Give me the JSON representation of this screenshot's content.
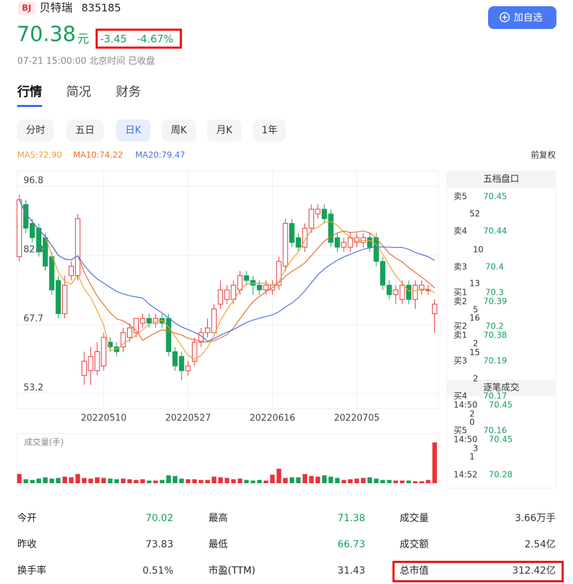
{
  "header": {
    "badge": "BJ",
    "name": "贝特瑞",
    "code": "835185",
    "price": "70.38",
    "unit": "元",
    "change": "-3.45",
    "change_pct": "-4.67%",
    "time": "07-21 15:00:00 北京时间 已收盘",
    "button": "加自选"
  },
  "tabs": [
    "行情",
    "简况",
    "财务"
  ],
  "periods": [
    "分时",
    "五日",
    "日K",
    "周K",
    "月K",
    "1年"
  ],
  "ma_legend": [
    {
      "text": "MA5:72.90",
      "color": "#f0a030"
    },
    {
      "text": "MA10:74.22",
      "color": "#ee6a2b"
    },
    {
      "text": "MA20:79.47",
      "color": "#4a6ee0"
    }
  ],
  "adjust": "前复权",
  "kline": {
    "ylim": [
      50,
      100
    ],
    "yticks": [
      96.8,
      82.3,
      67.7,
      53.2
    ],
    "xticks": [
      {
        "value": 13,
        "label": "20220510"
      },
      {
        "value": 26,
        "label": "20220527"
      },
      {
        "value": 39,
        "label": "20220616"
      },
      {
        "value": 52,
        "label": "20220705"
      }
    ],
    "up_color": "#e8333a",
    "down_color": "#15a05a",
    "candles": [
      [
        82,
        94,
        95,
        81
      ],
      [
        93,
        88,
        94,
        87
      ],
      [
        89,
        86,
        90,
        85
      ],
      [
        88,
        83,
        89,
        82
      ],
      [
        86,
        80,
        87,
        79
      ],
      [
        82,
        75,
        83,
        74
      ],
      [
        77,
        70,
        78,
        69
      ],
      [
        70,
        76,
        78,
        69
      ],
      [
        78,
        80,
        81,
        77
      ],
      [
        78,
        90,
        91,
        77
      ],
      [
        57,
        60,
        62,
        55
      ],
      [
        58,
        61,
        63,
        55
      ],
      [
        58,
        62,
        64,
        57
      ],
      [
        59,
        65,
        66,
        58
      ],
      [
        64,
        63,
        65,
        62
      ],
      [
        63,
        62,
        64,
        61
      ],
      [
        63,
        66,
        67,
        62
      ],
      [
        65,
        67,
        68,
        64
      ],
      [
        66,
        69,
        69,
        65
      ],
      [
        68,
        69,
        70,
        67
      ],
      [
        69,
        68,
        70,
        67
      ],
      [
        68,
        69,
        70,
        67
      ],
      [
        69,
        68,
        70,
        67
      ],
      [
        69,
        62,
        70,
        61
      ],
      [
        62,
        59,
        63,
        58
      ],
      [
        61,
        58,
        62,
        56
      ],
      [
        58,
        59,
        60,
        57
      ],
      [
        60,
        64,
        65,
        59
      ],
      [
        64,
        66,
        67,
        63
      ],
      [
        66,
        67,
        69,
        65
      ],
      [
        66,
        71,
        72,
        66
      ],
      [
        72,
        75,
        77,
        71
      ],
      [
        73,
        75,
        76,
        72
      ],
      [
        73,
        76,
        77,
        72
      ],
      [
        75,
        78,
        79,
        74
      ],
      [
        78,
        77,
        79,
        76
      ],
      [
        77,
        76,
        78,
        74
      ],
      [
        76,
        75,
        77,
        74
      ],
      [
        75,
        76,
        77,
        74
      ],
      [
        75,
        76,
        77,
        74
      ],
      [
        76,
        81,
        82,
        75
      ],
      [
        80,
        89,
        90,
        79
      ],
      [
        89,
        85,
        90,
        84
      ],
      [
        86,
        84,
        87,
        83
      ],
      [
        84,
        88,
        89,
        83
      ],
      [
        88,
        92,
        93,
        87
      ],
      [
        91,
        92,
        93,
        90
      ],
      [
        92,
        90,
        93,
        89
      ],
      [
        91,
        85,
        92,
        84
      ],
      [
        86,
        84,
        87,
        83
      ],
      [
        84,
        85,
        86,
        83
      ],
      [
        84,
        86,
        87,
        83
      ],
      [
        85,
        86,
        87,
        84
      ],
      [
        85,
        86,
        87,
        84
      ],
      [
        86,
        84,
        87,
        83
      ],
      [
        86,
        81,
        87,
        80
      ],
      [
        81,
        76,
        82,
        75
      ],
      [
        76,
        74,
        77,
        73
      ],
      [
        74,
        75,
        76,
        72
      ],
      [
        73,
        76,
        77,
        72
      ],
      [
        76,
        73,
        77,
        72
      ],
      [
        73,
        76,
        77,
        71
      ],
      [
        75,
        76,
        77,
        74
      ],
      [
        75,
        75,
        76,
        74
      ],
      [
        70,
        72,
        73,
        66
      ]
    ],
    "volume_title": "成交量(手)",
    "vlim": [
      0,
      65
    ],
    "volumes": [
      14,
      6,
      5,
      7,
      9,
      7,
      8,
      10,
      9,
      14,
      8,
      7,
      9,
      8,
      7,
      6,
      7,
      6,
      5,
      6,
      4,
      4,
      5,
      12,
      11,
      7,
      6,
      6,
      5,
      5,
      10,
      9,
      8,
      6,
      7,
      5,
      4,
      5,
      4,
      13,
      22,
      8,
      9,
      9,
      14,
      11,
      10,
      12,
      10,
      8,
      5,
      6,
      7,
      8,
      9,
      7,
      5,
      5,
      4,
      4,
      4,
      3,
      3,
      5,
      62
    ]
  },
  "orderbook": {
    "title": "五档盘口",
    "trades_title": "逐笔成交",
    "items": [
      {
        "text": "卖5",
        "color": "dark"
      },
      {
        "text": "70.45",
        "color": "green"
      },
      {
        "text": "52",
        "color": "dark"
      },
      {
        "text": "卖4",
        "color": "dark"
      },
      {
        "text": "70.44",
        "color": "green"
      },
      {
        "text": "10",
        "color": "dark"
      },
      {
        "text": "卖3",
        "color": "dark"
      },
      {
        "text": "70.4",
        "color": "green"
      },
      {
        "text": "13",
        "color": "dark"
      },
      {
        "text": "买1",
        "color": "dark"
      },
      {
        "text": "70.3",
        "color": "green"
      },
      {
        "text": "卖2",
        "color": "dark"
      },
      {
        "text": "70.39",
        "color": "green"
      },
      {
        "text": "5",
        "color": "dark"
      },
      {
        "text": "16",
        "color": "dark"
      },
      {
        "text": "买2",
        "color": "dark"
      },
      {
        "text": "70.2",
        "color": "green"
      },
      {
        "text": "卖1",
        "color": "dark"
      },
      {
        "text": "70.38",
        "color": "green"
      },
      {
        "text": "2",
        "color": "dark"
      },
      {
        "text": "15",
        "color": "dark"
      },
      {
        "text": "买3",
        "color": "dark"
      },
      {
        "text": "70.19",
        "color": "green"
      },
      {
        "text": "2",
        "color": "dark"
      },
      {
        "text": "买4",
        "color": "dark"
      },
      {
        "text": "70.17",
        "color": "green"
      },
      {
        "text": "14:50",
        "color": "dark"
      },
      {
        "text": "70.45",
        "color": "green"
      },
      {
        "text": "2",
        "color": "dark"
      },
      {
        "text": "0",
        "color": "dark"
      },
      {
        "text": "买5",
        "color": "dark"
      },
      {
        "text": "70.16",
        "color": "green"
      },
      {
        "text": "14:50",
        "color": "dark"
      },
      {
        "text": "70.45",
        "color": "green"
      },
      {
        "text": "3",
        "color": "dark"
      },
      {
        "text": "1",
        "color": "dark"
      },
      {
        "text": "14:52",
        "color": "dark"
      },
      {
        "text": "70.28",
        "color": "green"
      }
    ]
  },
  "stats": [
    [
      {
        "label": "今开",
        "value": "70.02",
        "color": "green"
      },
      {
        "label": "最高",
        "value": "71.38",
        "color": "green"
      },
      {
        "label": "成交量",
        "value": "3.66万手",
        "color": "dark"
      }
    ],
    [
      {
        "label": "昨收",
        "value": "73.83",
        "color": "dark"
      },
      {
        "label": "最低",
        "value": "66.73",
        "color": "green"
      },
      {
        "label": "成交额",
        "value": "2.54亿",
        "color": "dark"
      }
    ],
    [
      {
        "label": "换手率",
        "value": "0.51%",
        "color": "dark"
      },
      {
        "label": "市盈(TTM)",
        "value": "31.43",
        "color": "dark"
      },
      {
        "label": "总市值",
        "value": "312.42亿",
        "color": "dark"
      }
    ]
  ]
}
